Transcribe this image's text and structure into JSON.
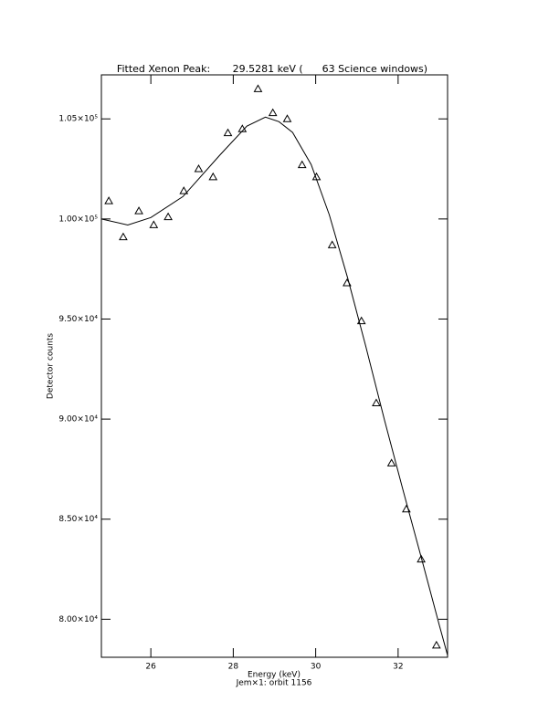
{
  "chart_data": {
    "type": "scatter-fit",
    "title": "Fitted Xenon Peak:       29.5281 keV (      63 Science windows)",
    "x_label": "Energy (keV)",
    "subtitle": "Jem×1: orbit 1156",
    "y_label": "Detector counts",
    "xlim": [
      24.8,
      33.2
    ],
    "ylim": [
      78100,
      107200
    ],
    "xticks": [
      26,
      28,
      30,
      32
    ],
    "yticks": [
      {
        "value": 80000,
        "label": "8.00×10⁴"
      },
      {
        "value": 85000,
        "label": "8.50×10⁴"
      },
      {
        "value": 90000,
        "label": "9.00×10⁴"
      },
      {
        "value": 95000,
        "label": "9.50×10⁴"
      },
      {
        "value": 100000,
        "label": "1.00×10⁵"
      },
      {
        "value": 105000,
        "label": "1.05×10⁵"
      }
    ],
    "points": {
      "x": [
        24.98,
        25.33,
        25.71,
        26.07,
        26.42,
        26.8,
        27.16,
        27.51,
        27.87,
        28.22,
        28.6,
        28.96,
        29.31,
        29.67,
        30.02,
        30.4,
        30.76,
        31.11,
        31.47,
        31.84,
        32.2,
        32.56,
        32.93
      ],
      "y": [
        100900,
        99100,
        100400,
        99700,
        100100,
        101400,
        102500,
        102100,
        104300,
        104500,
        106500,
        105300,
        105000,
        102700,
        102100,
        98700,
        96800,
        94900,
        90800,
        87800,
        85500,
        83000,
        78700
      ]
    },
    "fit": {
      "x": [
        24.8,
        25.44,
        26.0,
        26.78,
        27.67,
        28.33,
        28.78,
        29.11,
        29.44,
        29.89,
        30.33,
        30.78,
        31.22,
        31.67,
        32.11,
        32.56,
        33.0,
        33.2
      ],
      "y": [
        100000,
        99700,
        100070,
        101120,
        103180,
        104640,
        105090,
        104860,
        104320,
        102720,
        100210,
        97020,
        93600,
        89950,
        86520,
        83100,
        79700,
        78200
      ]
    }
  }
}
